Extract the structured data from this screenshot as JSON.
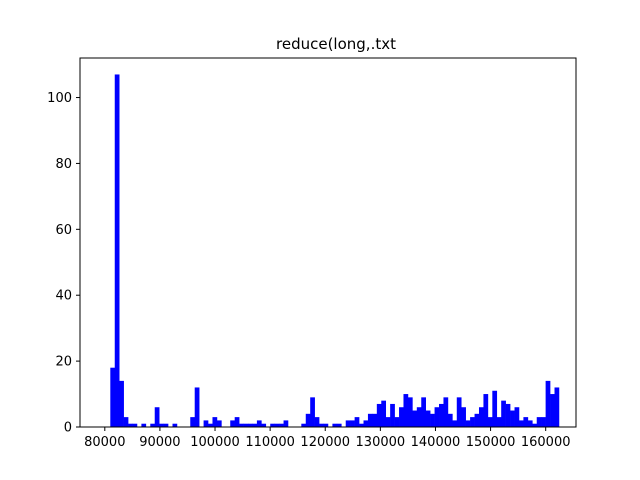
{
  "chart_data": {
    "type": "bar",
    "title": "reduce(long,.txt",
    "xlabel": "",
    "ylabel": "",
    "bar_color": "#0000ff",
    "grid": false,
    "xlim": [
      75500,
      165500
    ],
    "ylim": [
      0,
      112
    ],
    "xticks": [
      80000,
      90000,
      100000,
      110000,
      120000,
      130000,
      140000,
      150000,
      160000
    ],
    "xtick_labels": [
      "80000",
      "90000",
      "100000",
      "110000",
      "120000",
      "130000",
      "140000",
      "150000",
      "160000"
    ],
    "yticks": [
      0,
      20,
      40,
      60,
      80,
      100
    ],
    "ytick_labels": [
      "0",
      "20",
      "40",
      "60",
      "80",
      "100"
    ],
    "bin_start": 81000,
    "bin_width": 806,
    "values": [
      18,
      107,
      14,
      3,
      1,
      1,
      0,
      1,
      0,
      1,
      6,
      1,
      1,
      0,
      1,
      0,
      0,
      0,
      3,
      12,
      0,
      2,
      1,
      3,
      2,
      0,
      0,
      2,
      3,
      1,
      1,
      1,
      1,
      2,
      1,
      0,
      1,
      1,
      1,
      2,
      0,
      0,
      0,
      1,
      4,
      9,
      3,
      1,
      1,
      0,
      1,
      1,
      0,
      2,
      2,
      3,
      1,
      2,
      4,
      4,
      7,
      8,
      3,
      7,
      3,
      6,
      10,
      9,
      5,
      6,
      9,
      5,
      4,
      6,
      7,
      9,
      4,
      2,
      9,
      6,
      2,
      3,
      4,
      6,
      10,
      3,
      11,
      3,
      8,
      7,
      5,
      6,
      2,
      3,
      2,
      1,
      3,
      3,
      14,
      10,
      12
    ]
  }
}
